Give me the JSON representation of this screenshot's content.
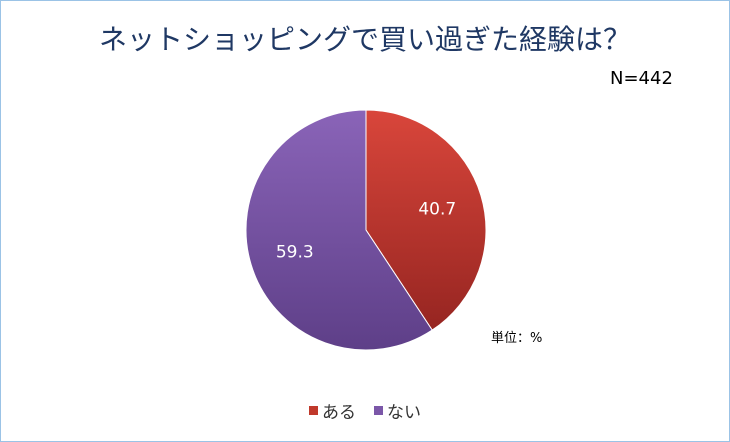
{
  "chart_data": {
    "type": "pie",
    "title": "ネットショッピングで買い過ぎた経験は？",
    "note_n": "N=442",
    "unit": "単位：%",
    "slices": [
      {
        "label": "ある",
        "value": 40.7,
        "value_label": "40.7",
        "color": "#c0392b"
      },
      {
        "label": "ない",
        "value": 59.3,
        "value_label": "59.3",
        "color": "#7b57a8"
      }
    ],
    "legend_position": "bottom"
  }
}
